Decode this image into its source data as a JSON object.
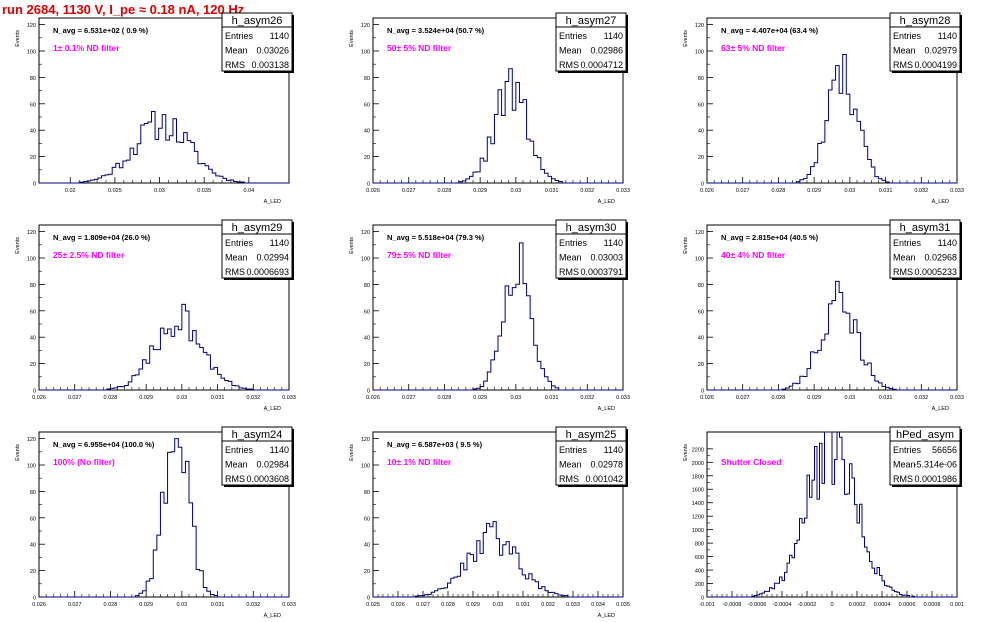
{
  "run_title": "run 2684,  1130 V, I_pe ≈ 0.18 nA, 120 Hz",
  "colors": {
    "title": "#e00000",
    "histogram": "#000080",
    "filter_label": "#ff00ff",
    "axes": "#000000"
  },
  "y_axis_label": "Events",
  "stats_labels": {
    "entries": "Entries",
    "mean": "Mean",
    "rms": "RMS"
  },
  "chart_data": [
    {
      "type": "histogram",
      "name": "h_asym26",
      "navg": "N_avg = 6.531e+02 ( 0.9 %)",
      "filter": "1± 0.1% ND filter",
      "entries": "1140",
      "mean": "0.03026",
      "rms": "0.003138",
      "xlabel": "A_LED",
      "ylabel": "Events",
      "xlim": [
        0.0165,
        0.0445
      ],
      "ylim": [
        0,
        125
      ],
      "xticks": [
        0.02,
        0.025,
        0.03,
        0.035,
        0.04
      ],
      "xticklabels": [
        "0.02",
        "0.025",
        "0.03",
        "0.035",
        "0.04"
      ],
      "yticks": [
        0,
        20,
        40,
        60,
        80,
        100,
        120
      ],
      "yticklabels": [
        "0",
        "20",
        "40",
        "60",
        "80",
        "100",
        "120"
      ],
      "bin_center": 0.0303,
      "bin_width": 0.0004,
      "mu": 0.03026,
      "sigma": 0.003138,
      "peak": 45,
      "seed": 11
    },
    {
      "type": "histogram",
      "name": "h_asym27",
      "navg": "N_avg = 3.524e+04 (50.7 %)",
      "filter": "50± 5% ND filter",
      "entries": "1140",
      "mean": "0.02986",
      "rms": "0.0004712",
      "xlabel": "A_LED",
      "ylabel": "Events",
      "xlim": [
        0.026,
        0.033
      ],
      "ylim": [
        0,
        125
      ],
      "xticks": [
        0.026,
        0.027,
        0.028,
        0.029,
        0.03,
        0.031,
        0.032,
        0.033
      ],
      "xticklabels": [
        "0.026",
        "0.027",
        "0.028",
        "0.029",
        "0.03",
        "0.031",
        "0.032",
        "0.033"
      ],
      "yticks": [
        0,
        20,
        40,
        60,
        80,
        100,
        120
      ],
      "yticklabels": [
        "0",
        "20",
        "40",
        "60",
        "80",
        "100",
        "120"
      ],
      "bin_center": 0.0299,
      "bin_width": 0.0001,
      "mu": 0.02986,
      "sigma": 0.0004712,
      "peak": 70,
      "seed": 22
    },
    {
      "type": "histogram",
      "name": "h_asym28",
      "navg": "N_avg = 4.407e+04 (63.4 %)",
      "filter": "63± 5% ND filter",
      "entries": "1140",
      "mean": "0.02979",
      "rms": "0.0004199",
      "xlabel": "A_LED",
      "ylabel": "Events",
      "xlim": [
        0.026,
        0.033
      ],
      "ylim": [
        0,
        125
      ],
      "xticks": [
        0.026,
        0.027,
        0.028,
        0.029,
        0.03,
        0.031,
        0.032,
        0.033
      ],
      "xticklabels": [
        "0.026",
        "0.027",
        "0.028",
        "0.029",
        "0.03",
        "0.031",
        "0.032",
        "0.033"
      ],
      "yticks": [
        0,
        20,
        40,
        60,
        80,
        100,
        120
      ],
      "yticklabels": [
        "0",
        "20",
        "40",
        "60",
        "80",
        "100",
        "120"
      ],
      "bin_center": 0.0298,
      "bin_width": 0.0001,
      "mu": 0.02979,
      "sigma": 0.0004199,
      "peak": 80,
      "seed": 33
    },
    {
      "type": "histogram",
      "name": "h_asym29",
      "navg": "N_avg = 1.809e+04 (26.0 %)",
      "filter": "25± 2.5% ND filter",
      "entries": "1140",
      "mean": "0.02994",
      "rms": "0.0006693",
      "xlabel": "A_LED",
      "ylabel": "Events",
      "xlim": [
        0.026,
        0.033
      ],
      "ylim": [
        0,
        125
      ],
      "xticks": [
        0.026,
        0.027,
        0.028,
        0.029,
        0.03,
        0.031,
        0.032,
        0.033
      ],
      "xticklabels": [
        "0.026",
        "0.027",
        "0.028",
        "0.029",
        "0.03",
        "0.031",
        "0.032",
        "0.033"
      ],
      "yticks": [
        0,
        20,
        40,
        60,
        80,
        100,
        120
      ],
      "yticklabels": [
        "0",
        "20",
        "40",
        "60",
        "80",
        "100",
        "120"
      ],
      "bin_center": 0.0299,
      "bin_width": 0.0001,
      "mu": 0.02994,
      "sigma": 0.0006693,
      "peak": 55,
      "seed": 44
    },
    {
      "type": "histogram",
      "name": "h_asym30",
      "navg": "N_avg = 5.518e+04 (79.3 %)",
      "filter": "79± 5% ND filter",
      "entries": "1140",
      "mean": "0.03003",
      "rms": "0.0003791",
      "xlabel": "A_LED",
      "ylabel": "Events",
      "xlim": [
        0.026,
        0.033
      ],
      "ylim": [
        0,
        125
      ],
      "xticks": [
        0.026,
        0.027,
        0.028,
        0.029,
        0.03,
        0.031,
        0.032,
        0.033
      ],
      "xticklabels": [
        "0.026",
        "0.027",
        "0.028",
        "0.029",
        "0.03",
        "0.031",
        "0.032",
        "0.033"
      ],
      "yticks": [
        0,
        20,
        40,
        60,
        80,
        100,
        120
      ],
      "yticklabels": [
        "0",
        "20",
        "40",
        "60",
        "80",
        "100",
        "120"
      ],
      "bin_center": 0.03,
      "bin_width": 0.0001,
      "mu": 0.03003,
      "sigma": 0.0003791,
      "peak": 100,
      "seed": 55
    },
    {
      "type": "histogram",
      "name": "h_asym31",
      "navg": "N_avg = 2.815e+04 (40.5 %)",
      "filter": "40± 4% ND filter",
      "entries": "1140",
      "mean": "0.02968",
      "rms": "0.0005233",
      "xlabel": "A_LED",
      "ylabel": "Events",
      "xlim": [
        0.026,
        0.033
      ],
      "ylim": [
        0,
        125
      ],
      "xticks": [
        0.026,
        0.027,
        0.028,
        0.029,
        0.03,
        0.031,
        0.032,
        0.033
      ],
      "xticklabels": [
        "0.026",
        "0.027",
        "0.028",
        "0.029",
        "0.03",
        "0.031",
        "0.032",
        "0.033"
      ],
      "yticks": [
        0,
        20,
        40,
        60,
        80,
        100,
        120
      ],
      "yticklabels": [
        "0",
        "20",
        "40",
        "60",
        "80",
        "100",
        "120"
      ],
      "bin_center": 0.0297,
      "bin_width": 0.0001,
      "mu": 0.02968,
      "sigma": 0.0005233,
      "peak": 65,
      "seed": 66
    },
    {
      "type": "histogram",
      "name": "h_asym24",
      "navg": "N_avg = 6.955e+04 (100.0 %)",
      "filter": "100% (No filter)",
      "entries": "1140",
      "mean": "0.02984",
      "rms": "0.0003608",
      "xlabel": "A_LED",
      "ylabel": "Events",
      "xlim": [
        0.026,
        0.033
      ],
      "ylim": [
        0,
        125
      ],
      "xticks": [
        0.026,
        0.027,
        0.028,
        0.029,
        0.03,
        0.031,
        0.032,
        0.033
      ],
      "xticklabels": [
        "0.026",
        "0.027",
        "0.028",
        "0.029",
        "0.03",
        "0.031",
        "0.032",
        "0.033"
      ],
      "yticks": [
        0,
        20,
        40,
        60,
        80,
        100,
        120
      ],
      "yticklabels": [
        "0",
        "20",
        "40",
        "60",
        "80",
        "100",
        "120"
      ],
      "bin_center": 0.0298,
      "bin_width": 0.0001,
      "mu": 0.02984,
      "sigma": 0.0003608,
      "peak": 120,
      "seed": 77
    },
    {
      "type": "histogram",
      "name": "h_asym25",
      "navg": "N_avg = 6.587e+03 ( 9.5 %)",
      "filter": "10± 1% ND filter",
      "entries": "1140",
      "mean": "0.02978",
      "rms": "0.001042",
      "xlabel": "A_LED",
      "ylabel": "Events",
      "xlim": [
        0.025,
        0.035
      ],
      "ylim": [
        0,
        125
      ],
      "xticks": [
        0.025,
        0.026,
        0.027,
        0.028,
        0.029,
        0.03,
        0.031,
        0.032,
        0.033,
        0.034,
        0.035
      ],
      "xticklabels": [
        "0.025",
        "0.026",
        "0.027",
        "0.028",
        "0.029",
        "0.03",
        "0.031",
        "0.032",
        "0.033",
        "0.034",
        "0.035"
      ],
      "yticks": [
        0,
        20,
        40,
        60,
        80,
        100,
        120
      ],
      "yticklabels": [
        "0",
        "20",
        "40",
        "60",
        "80",
        "100",
        "120"
      ],
      "bin_center": 0.0298,
      "bin_width": 0.00013,
      "mu": 0.02978,
      "sigma": 0.001042,
      "peak": 45,
      "seed": 88
    },
    {
      "type": "histogram",
      "name": "hPed_asym",
      "navg": "",
      "filter": "Shutter Closed",
      "entries": "56656",
      "mean": "-5.314e-06",
      "rms": "0.0001986",
      "xlabel": "",
      "ylabel": "Events",
      "xlim": [
        -0.001,
        0.001
      ],
      "ylim": [
        0,
        2450
      ],
      "xticks": [
        -0.001,
        -0.0008,
        -0.0006,
        -0.0004,
        -0.0002,
        0,
        0.0002,
        0.0004,
        0.0006,
        0.0008,
        0.001
      ],
      "xticklabels": [
        "-0.001",
        "-0.0008",
        "-0.0006",
        "-0.0004",
        "-0.0002",
        "0",
        "0.0002",
        "0.0004",
        "0.0006",
        "0.0008",
        "0.001"
      ],
      "yticks": [
        0,
        200,
        400,
        600,
        800,
        1000,
        1200,
        1400,
        1600,
        1800,
        2000,
        2200
      ],
      "yticklabels": [
        "0",
        "200",
        "400",
        "600",
        "800",
        "1000",
        "1200",
        "1400",
        "1600",
        "1800",
        "2000",
        "2200"
      ],
      "bin_center": 0.0,
      "bin_width": 2e-05,
      "mu": -5.314e-06,
      "sigma": 0.0001986,
      "peak": 2200,
      "seed": 99
    }
  ]
}
